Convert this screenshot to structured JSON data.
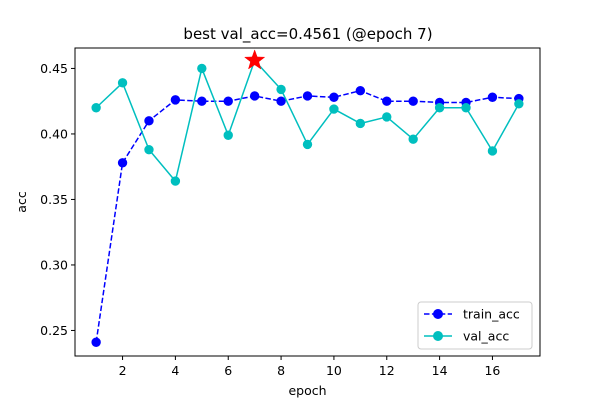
{
  "chart_data": {
    "type": "line",
    "title": "best val_acc=0.4561 (@epoch 7)",
    "xlabel": "epoch",
    "ylabel": "acc",
    "xlim": [
      0.2,
      17.8
    ],
    "ylim": [
      0.2305,
      0.4656
    ],
    "xticks": [
      2,
      4,
      6,
      8,
      10,
      12,
      14,
      16
    ],
    "yticks": [
      0.25,
      0.3,
      0.35,
      0.4,
      0.45
    ],
    "ytick_labels": [
      "0.25",
      "0.30",
      "0.35",
      "0.40",
      "0.45"
    ],
    "grid": false,
    "legend_position": "bottom-right",
    "x": [
      1,
      2,
      3,
      4,
      5,
      6,
      7,
      8,
      9,
      10,
      11,
      12,
      13,
      14,
      15,
      16,
      17
    ],
    "series": [
      {
        "name": "train_acc",
        "color": "#0000ff",
        "line_style": "dashed",
        "marker": "circle",
        "values": [
          0.241,
          0.378,
          0.41,
          0.426,
          0.425,
          0.425,
          0.429,
          0.425,
          0.429,
          0.428,
          0.433,
          0.425,
          0.425,
          0.424,
          0.424,
          0.428,
          0.427
        ]
      },
      {
        "name": "val_acc",
        "color": "#00bfbf",
        "line_style": "solid",
        "marker": "circle",
        "values": [
          0.42,
          0.439,
          0.388,
          0.364,
          0.45,
          0.399,
          0.4561,
          0.434,
          0.392,
          0.419,
          0.408,
          0.413,
          0.396,
          0.42,
          0.42,
          0.387,
          0.423
        ]
      }
    ],
    "best_marker": {
      "x": 7,
      "y": 0.4561,
      "marker": "star",
      "color": "#ff0000"
    }
  }
}
